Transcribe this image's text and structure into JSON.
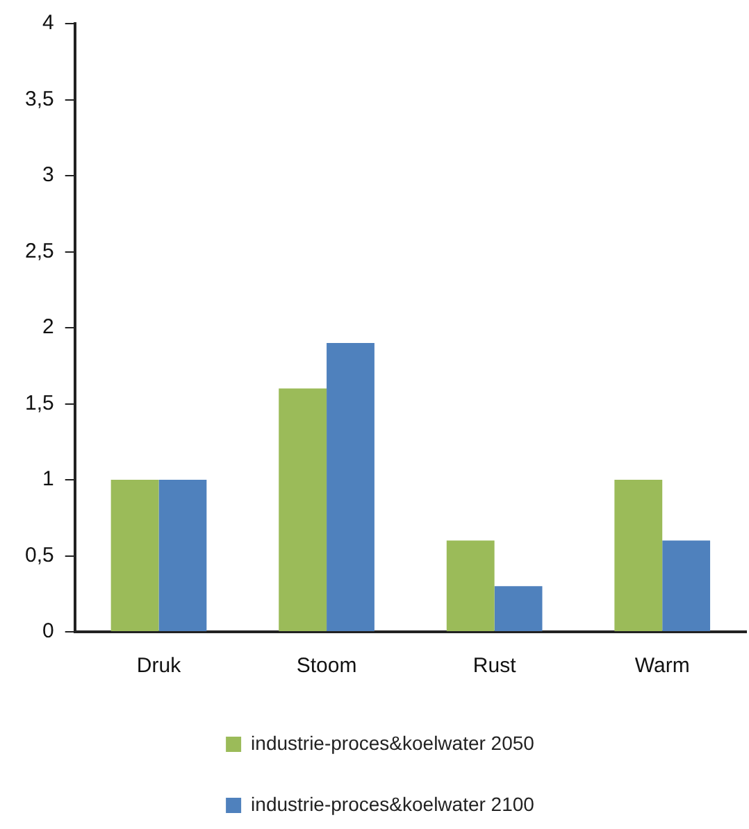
{
  "chart_data": {
    "type": "bar",
    "categories": [
      "Druk",
      "Stoom",
      "Rust",
      "Warm"
    ],
    "series": [
      {
        "name": "industrie-proces&koelwater 2050",
        "color": "#9bbb59",
        "values": [
          1,
          1.6,
          0.6,
          1
        ]
      },
      {
        "name": "industrie-proces&koelwater 2100",
        "color": "#4f81bd",
        "values": [
          1,
          1.9,
          0.3,
          0.6
        ]
      }
    ],
    "ylim": [
      0,
      4
    ],
    "yticks": [
      0,
      {
        "value": 0.5,
        "label": "0,5"
      },
      1,
      {
        "value": 1.5,
        "label": "1,5"
      },
      2,
      {
        "value": 2.5,
        "label": "2,5"
      },
      3,
      {
        "value": 3.5,
        "label": "3,5"
      },
      4
    ],
    "grid": false,
    "legend": "bottom"
  }
}
